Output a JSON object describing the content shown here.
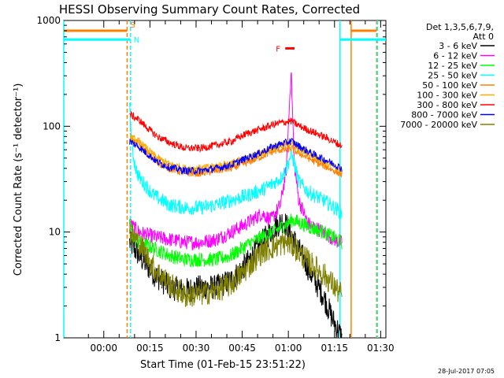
{
  "chart_data": {
    "type": "line",
    "title": "HESSI Observing Summary Count Rates, Corrected",
    "xlabel": "Start Time (01-Feb-15 23:51:22)",
    "ylabel": "Corrected Count Rate (s⁻¹ detector⁻¹)",
    "yscale": "log",
    "ylim": [
      1,
      1000
    ],
    "xlim_minutes": [
      -4.4,
      100.3
    ],
    "x_ticks": [
      {
        "label": "00:00",
        "value": 8.6
      },
      {
        "label": "00:15",
        "value": 23.6
      },
      {
        "label": "00:30",
        "value": 38.6
      },
      {
        "label": "00:45",
        "value": 53.6
      },
      {
        "label": "01:00",
        "value": 68.6
      },
      {
        "label": "01:15",
        "value": 83.6
      },
      {
        "label": "01:30",
        "value": 98.6
      }
    ],
    "y_ticks": [
      {
        "label": "1",
        "value": 1
      },
      {
        "label": "10",
        "value": 10
      },
      {
        "label": "100",
        "value": 100
      },
      {
        "label": "1000",
        "value": 1000
      }
    ],
    "legend_header": [
      "Det 1,3,5,6,7,9,",
      "Att 0"
    ],
    "legend_position": "right",
    "series": [
      {
        "name": "3 - 6 keV",
        "color": "#000000",
        "x": [
          17,
          20,
          25,
          30,
          35,
          40,
          45,
          50,
          55,
          60,
          64,
          67,
          70,
          73,
          76,
          80,
          83,
          86
        ],
        "values": [
          8,
          6,
          4,
          3,
          2.8,
          3,
          3,
          3.5,
          5,
          8,
          11,
          13,
          9,
          6,
          4,
          2.5,
          1.5,
          1
        ]
      },
      {
        "name": "6 - 12 keV",
        "color": "#ff00ff",
        "x": [
          17,
          20,
          25,
          30,
          35,
          40,
          45,
          50,
          55,
          60,
          63,
          66,
          68,
          69.5,
          70.5,
          72,
          75,
          80,
          85,
          86
        ],
        "values": [
          12,
          10,
          9,
          8.5,
          8,
          8,
          8.5,
          10,
          12,
          15,
          13,
          18,
          40,
          350,
          45,
          20,
          12,
          10,
          8,
          8
        ]
      },
      {
        "name": "12 - 25 keV",
        "color": "#00ff00",
        "x": [
          17,
          18,
          20,
          25,
          30,
          35,
          40,
          45,
          50,
          55,
          60,
          65,
          68,
          70,
          73,
          76,
          80,
          83,
          86
        ],
        "values": [
          13,
          9,
          8,
          7,
          6,
          5.5,
          5.5,
          5.5,
          6,
          7.5,
          9,
          10.5,
          12,
          13,
          12,
          11,
          10,
          9,
          8
        ]
      },
      {
        "name": "25 - 50 keV",
        "color": "#00ffff",
        "x": [
          17,
          17.6,
          18.3,
          19,
          20,
          22,
          25,
          30,
          35,
          40,
          45,
          50,
          55,
          60,
          63,
          66,
          68,
          69.5,
          70.5,
          72,
          75,
          80,
          85,
          86
        ],
        "values": [
          145,
          80,
          50,
          40,
          33,
          28,
          22,
          18,
          17,
          17,
          18,
          20,
          22,
          25,
          28,
          32,
          40,
          55,
          45,
          30,
          24,
          20,
          16,
          15
        ]
      },
      {
        "name": "50 - 100 keV",
        "color": "#ff8000",
        "x": [
          17,
          20,
          23,
          26,
          30,
          35,
          40,
          45,
          50,
          55,
          60,
          63,
          66,
          68,
          69.5,
          71,
          74,
          78,
          82,
          86
        ],
        "values": [
          75,
          68,
          55,
          45,
          40,
          36,
          36,
          38,
          40,
          45,
          52,
          57,
          60,
          60,
          62,
          58,
          52,
          45,
          40,
          35
        ]
      },
      {
        "name": "100 - 300 keV",
        "color": "#ffaa00",
        "x": [
          17,
          20,
          23,
          26,
          30,
          35,
          40,
          45,
          50,
          55,
          60,
          63,
          66,
          68,
          69.5,
          71,
          74,
          78,
          82,
          86
        ],
        "values": [
          80,
          72,
          60,
          50,
          44,
          40,
          40,
          42,
          45,
          50,
          56,
          62,
          66,
          68,
          70,
          64,
          57,
          50,
          44,
          38
        ]
      },
      {
        "name": "300 - 800 keV",
        "color": "#ff0000",
        "x": [
          17,
          20,
          23,
          26,
          30,
          35,
          40,
          45,
          50,
          55,
          60,
          63,
          66,
          68,
          69.5,
          71,
          74,
          78,
          82,
          86
        ],
        "values": [
          130,
          115,
          95,
          80,
          70,
          62,
          62,
          66,
          72,
          85,
          95,
          102,
          108,
          110,
          112,
          105,
          95,
          85,
          75,
          65
        ]
      },
      {
        "name": "800 - 7000 keV",
        "color": "#0000ff",
        "x": [
          17,
          20,
          23,
          26,
          30,
          35,
          40,
          45,
          50,
          55,
          60,
          63,
          66,
          68,
          69.5,
          71,
          74,
          78,
          82,
          86
        ],
        "values": [
          72,
          64,
          54,
          46,
          41,
          38,
          38,
          40,
          43,
          50,
          57,
          63,
          68,
          70,
          73,
          68,
          60,
          52,
          46,
          40
        ]
      },
      {
        "name": "7000 - 20000 keV",
        "color": "#808000",
        "x": [
          17,
          20,
          25,
          30,
          35,
          40,
          45,
          50,
          55,
          60,
          65,
          68,
          70,
          73,
          76,
          80,
          83,
          86
        ],
        "values": [
          10,
          8,
          4.5,
          3.2,
          2.5,
          2.6,
          2.8,
          3.2,
          4.5,
          6.5,
          7.5,
          8,
          7.5,
          6,
          5,
          4,
          3.2,
          2.5
        ]
      }
    ],
    "annotations": [
      {
        "label": "S",
        "color": "#ff8000"
      },
      {
        "label": "N",
        "color": "#00ffff"
      },
      {
        "label": "F",
        "color": "#ff0000"
      }
    ],
    "vertical_markers": [
      {
        "x": -4.4,
        "color": "#00ffff",
        "style": "solid"
      },
      {
        "x": 16.2,
        "color": "#ff8000",
        "style": "dashed"
      },
      {
        "x": 17.3,
        "color": "#00ffff",
        "style": "dashed"
      },
      {
        "x": 85.4,
        "color": "#00ffff",
        "style": "solid"
      },
      {
        "x": 89.0,
        "color": "#ff8000",
        "style": "solid"
      },
      {
        "x": 97.3,
        "color": "#ff8000",
        "style": "dashed"
      },
      {
        "x": 97.6,
        "color": "#00ffff",
        "style": "dashed"
      }
    ],
    "flag_bars": [
      {
        "label": "S",
        "color": "#ff8000",
        "ranges": [
          [
            -4.4,
            16.2
          ],
          [
            89.0,
            97.3
          ]
        ],
        "level": 800
      },
      {
        "label": "N",
        "color": "#00ffff",
        "ranges": [
          [
            -4.4,
            17.3
          ],
          [
            85.4,
            100.3
          ]
        ],
        "level": 660
      },
      {
        "label": "F",
        "color": "#ff0000",
        "ranges": [
          [
            67.6,
            70.6
          ]
        ],
        "level": 545
      }
    ],
    "grid": false
  },
  "timestamp": "28-Jul-2017 07:05"
}
